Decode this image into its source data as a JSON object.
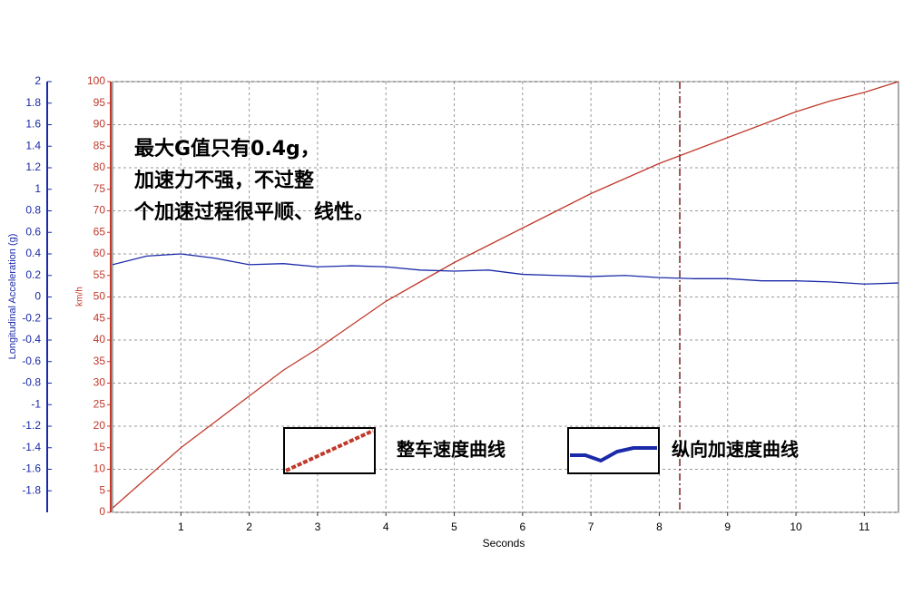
{
  "chart_data": {
    "type": "line",
    "x": [
      0,
      0.5,
      1,
      1.5,
      2,
      2.5,
      3,
      3.5,
      4,
      4.5,
      5,
      5.5,
      6,
      6.5,
      7,
      7.5,
      8,
      8.5,
      9,
      9.5,
      10,
      10.5,
      11,
      11.5
    ],
    "xlabel": "Seconds",
    "ylabel": "km/h",
    "y2label": "Longitudinal Acceleration (g)",
    "xlim": [
      0,
      11.5
    ],
    "xticks": [
      1,
      2,
      3,
      4,
      5,
      6,
      7,
      8,
      9,
      10,
      11
    ],
    "ylim": [
      0,
      100
    ],
    "yticks": [
      0,
      5,
      10,
      15,
      20,
      25,
      30,
      35,
      40,
      45,
      50,
      55,
      60,
      65,
      70,
      75,
      80,
      85,
      90,
      95,
      100
    ],
    "y2lim": [
      -2,
      2
    ],
    "y2ticks": [
      2,
      1.8,
      1.6,
      1.4,
      1.2,
      1,
      0.8,
      0.6,
      0.4,
      0.2,
      0,
      -0.2,
      -0.4,
      -0.6,
      -0.8,
      -1,
      -1.2,
      -1.4,
      -1.6,
      -1.8
    ],
    "grid": true,
    "vline_x": 8.3,
    "annotation": [
      "最大G值只有0.4g，",
      "加速力不强，不过整",
      "个加速过程很平顺、线性。"
    ],
    "series": [
      {
        "name": "整车速度曲线",
        "color": "#c0392b",
        "values": [
          1,
          8,
          15,
          21,
          27,
          33,
          38,
          43.5,
          49,
          53.5,
          58,
          62,
          66,
          70,
          74,
          77.5,
          81,
          84,
          87,
          90,
          93,
          95.5,
          97.5,
          100
        ]
      },
      {
        "name": "纵向加速度曲线",
        "color": "#1a2aa8",
        "axis": "y2",
        "values": [
          0.3,
          0.38,
          0.4,
          0.36,
          0.3,
          0.31,
          0.28,
          0.29,
          0.28,
          0.25,
          0.24,
          0.25,
          0.21,
          0.2,
          0.19,
          0.2,
          0.18,
          0.17,
          0.17,
          0.15,
          0.15,
          0.14,
          0.12,
          0.13
        ]
      }
    ]
  }
}
